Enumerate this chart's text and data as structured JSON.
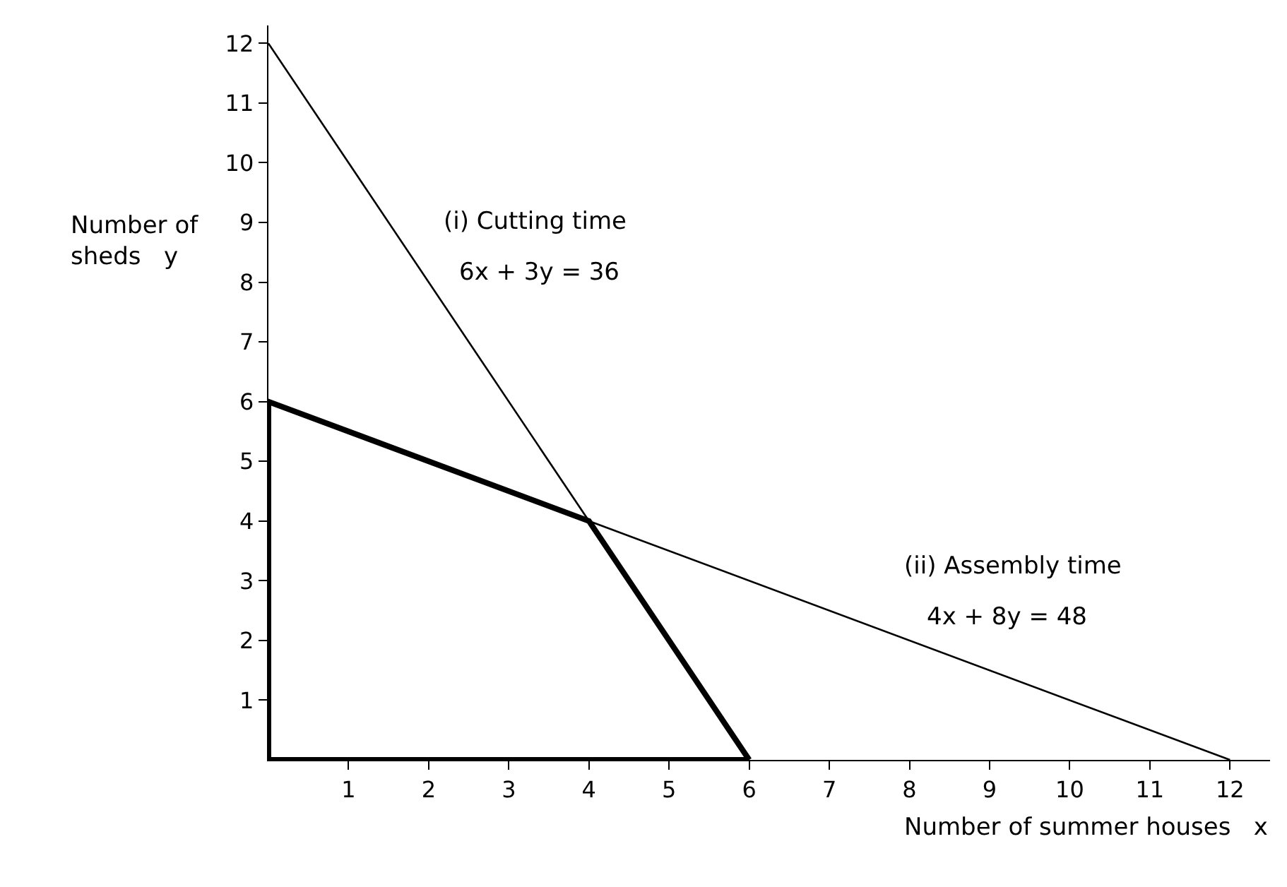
{
  "chart_data": {
    "type": "line",
    "xlabel": "Number of summer houses   x",
    "ylabel": "Number of\nsheds   y",
    "series": [
      {
        "color": "#000000",
        "x": [
          0,
          4
        ],
        "values": [
          12,
          4
        ]
      },
      {
        "color": "#000000",
        "x": [
          4,
          12
        ],
        "values": [
          4,
          0
        ]
      },
      {
        "color": "#000000",
        "x": [
          0,
          0,
          4,
          6
        ],
        "values": [
          0,
          6,
          4,
          0
        ]
      },
      {
        "color": "#000000",
        "x": [
          0,
          6
        ],
        "values": [
          0,
          0
        ]
      }
    ],
    "xlim": [
      0,
      12.5
    ],
    "ylim": [
      0,
      12.3
    ],
    "xticks": [
      1,
      2,
      3,
      4,
      5,
      6,
      7,
      8,
      9,
      10,
      11,
      12
    ],
    "yticks": [
      1,
      2,
      3,
      4,
      5,
      6,
      7,
      8,
      9,
      10,
      11,
      12
    ],
    "marker": "none",
    "line_style": "solid",
    "annotations": [
      "(i) Cutting time",
      "6x + 3y = 36",
      "(ii) Assembly time",
      "4x + 8y = 48"
    ]
  }
}
